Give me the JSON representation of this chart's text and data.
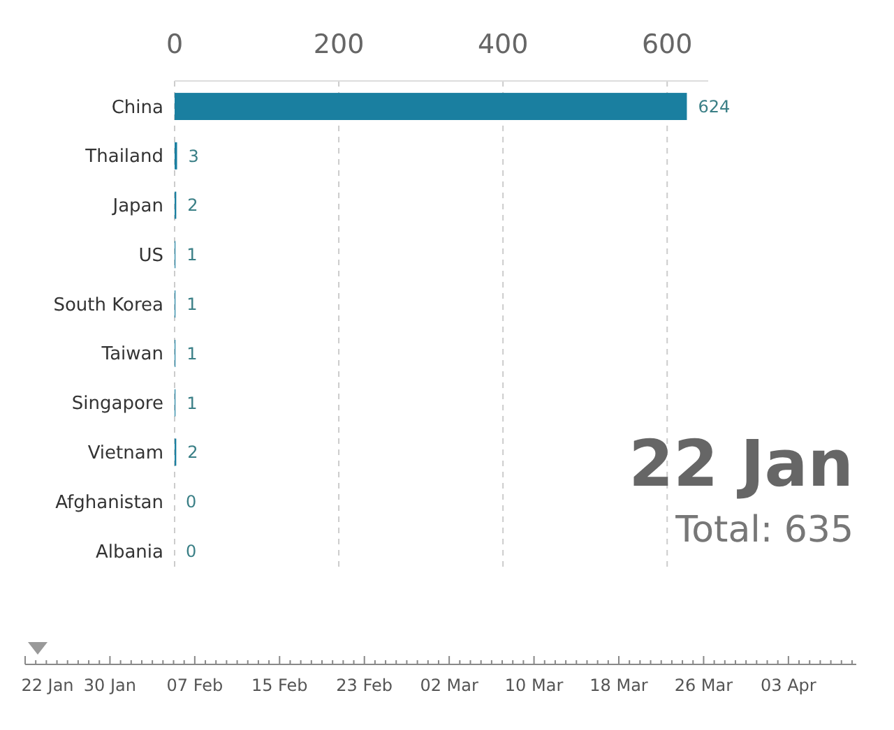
{
  "chart_data": {
    "type": "bar",
    "orientation": "horizontal",
    "categories": [
      "China",
      "Thailand",
      "Japan",
      "US",
      "South Korea",
      "Taiwan",
      "Singapore",
      "Vietnam",
      "Afghanistan",
      "Albania"
    ],
    "values": [
      624,
      3,
      2,
      1,
      1,
      1,
      1,
      2,
      0,
      0
    ],
    "color": "#1a7fa0",
    "xlim": [
      0,
      650
    ],
    "xticks": [
      0,
      200,
      400,
      600
    ],
    "grid": "x",
    "data_labels": true,
    "annotations": [
      "22 Jan",
      "Total: 635",
      "22 Jan",
      "30 Jan",
      "07 Feb",
      "15 Feb",
      "23 Feb",
      "02 Mar",
      "10 Mar",
      "18 Mar",
      "26 Mar",
      "03 Apr"
    ]
  }
}
